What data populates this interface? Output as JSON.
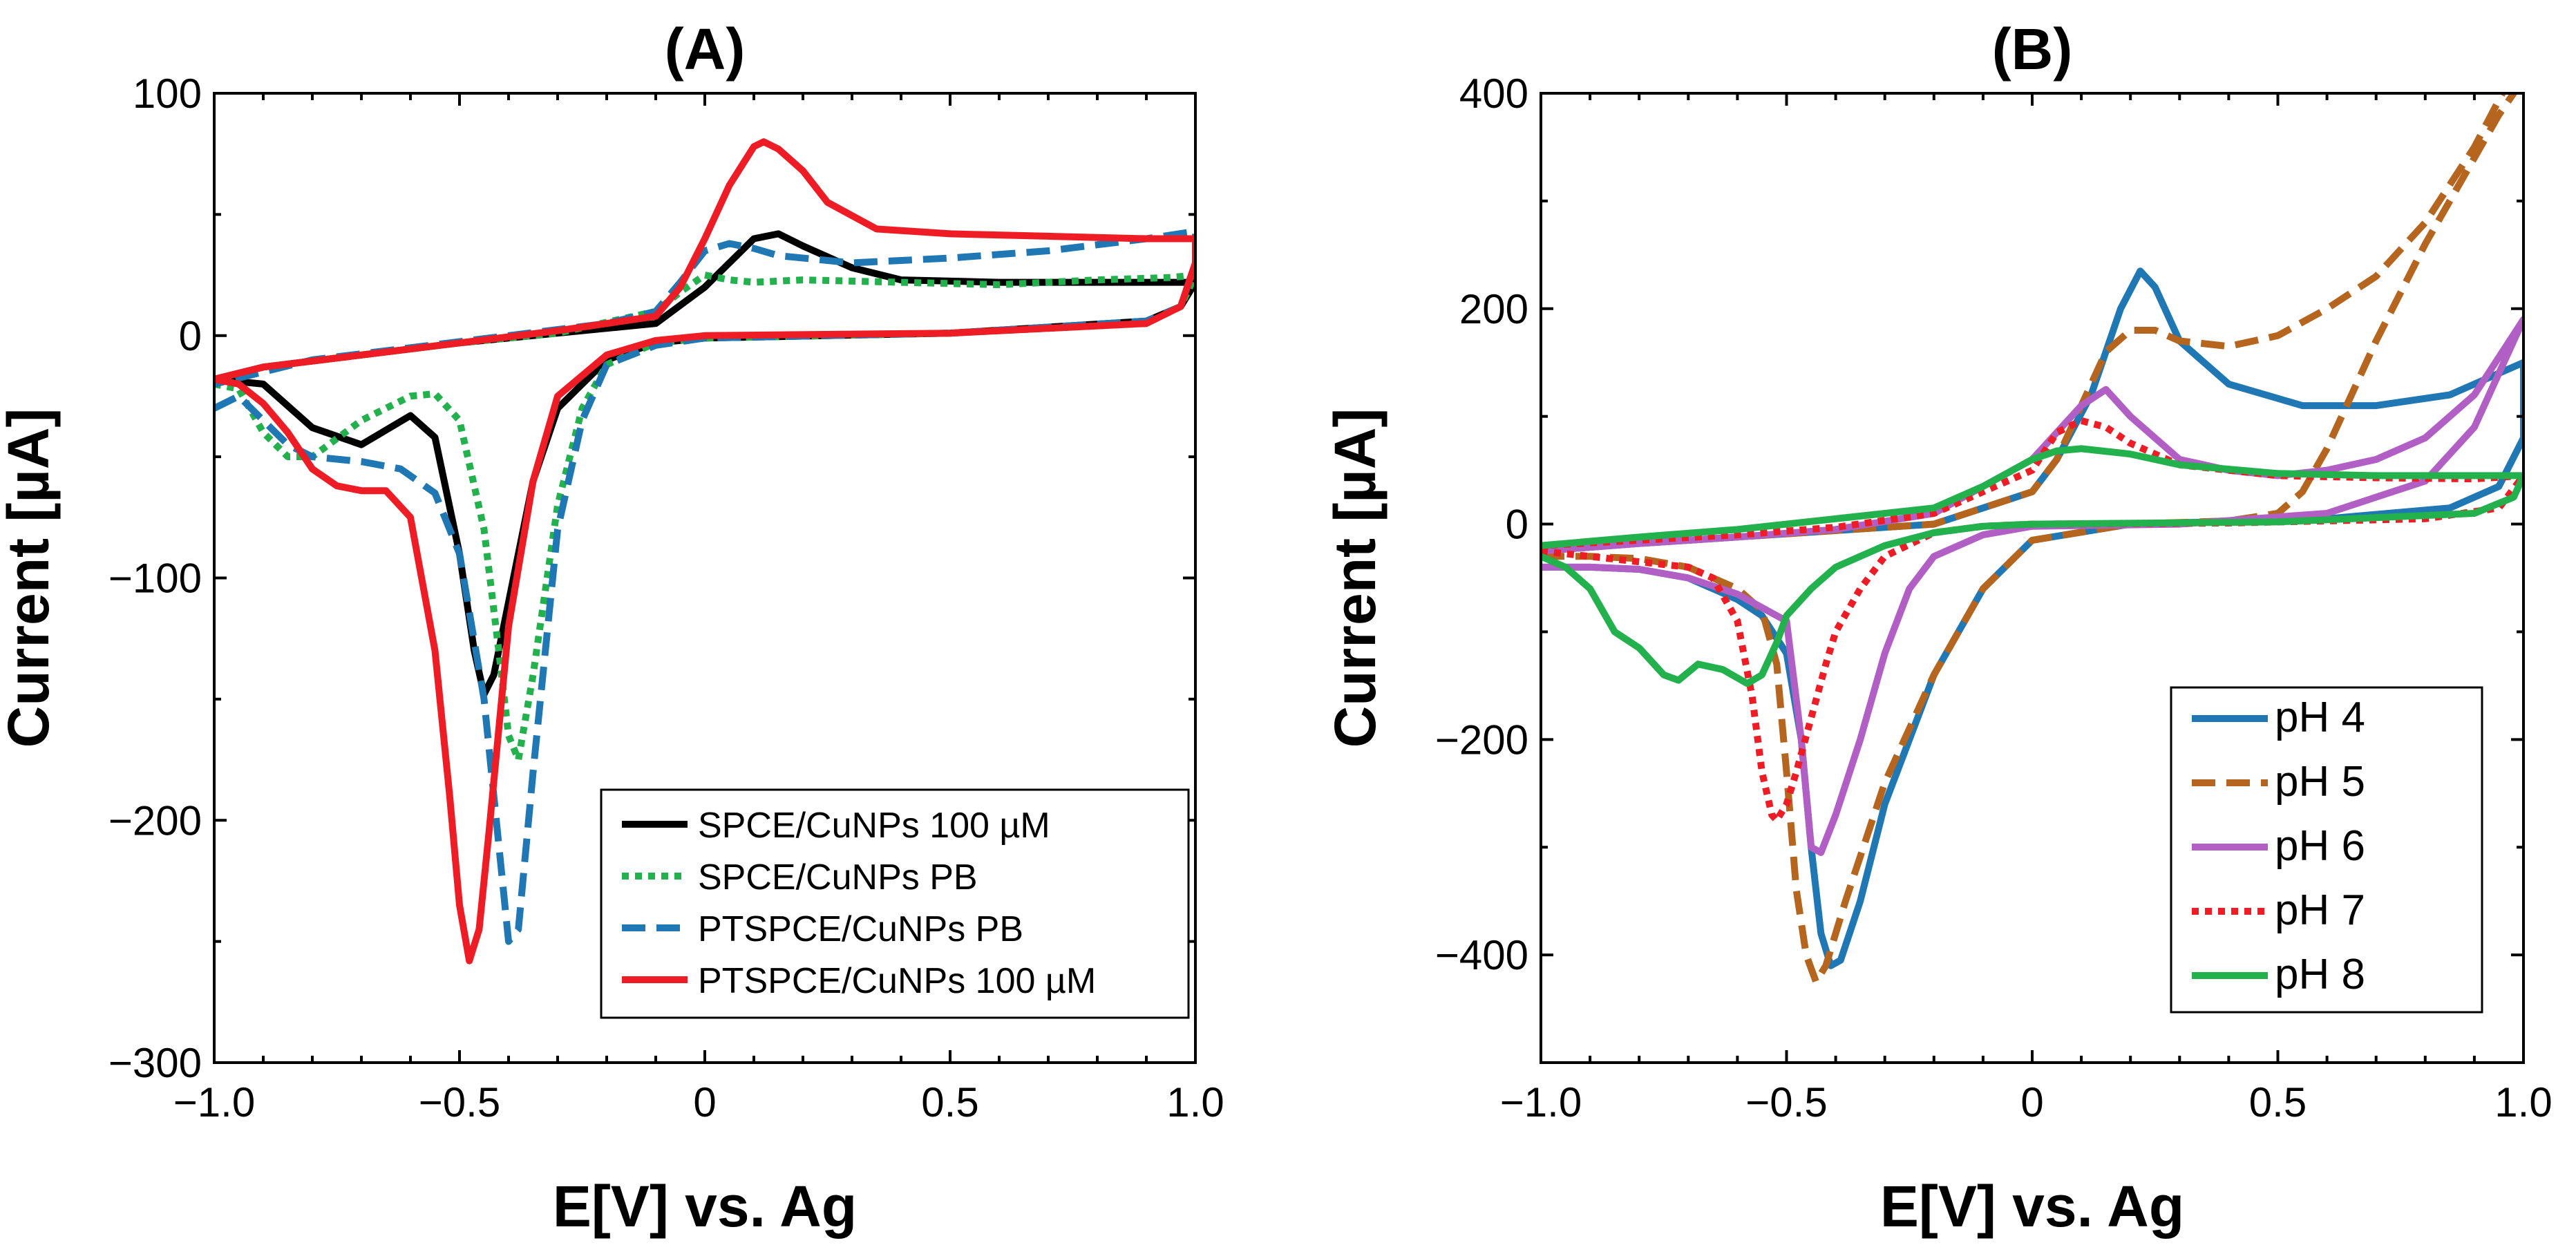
{
  "chart_data": [
    {
      "type": "line",
      "title": "(A)",
      "xlabel": "E[V] vs. Ag",
      "ylabel": "Current [µA]",
      "xlim": [
        -1.0,
        1.0
      ],
      "ylim": [
        -300,
        100
      ],
      "xticks": [
        -1.0,
        -0.5,
        0,
        0.5,
        1.0
      ],
      "xtick_labels": [
        "−1.0",
        "−0.5",
        "0",
        "0.5",
        "1.0"
      ],
      "yticks": [
        100,
        0,
        -100,
        -200,
        -300
      ],
      "ytick_labels": [
        "100",
        "0",
        "−100",
        "−200",
        "−300"
      ],
      "legend_position": "bottom-right",
      "series": [
        {
          "name": "SPCE/CuNPs 100 µM",
          "color": "#000000",
          "dash": "solid",
          "x": [
            -1.0,
            -0.9,
            -0.8,
            -0.7,
            -0.6,
            -0.55,
            -0.5,
            -0.47,
            -0.45,
            -0.43,
            -0.4,
            -0.35,
            -0.3,
            -0.2,
            -0.1,
            0.0,
            0.5,
            0.9,
            0.97,
            1.0,
            1.0,
            0.95,
            0.9,
            0.8,
            0.6,
            0.4,
            0.3,
            0.2,
            0.15,
            0.1,
            0.05,
            0.0,
            -0.1,
            -0.3,
            -0.5,
            -0.7,
            -0.9,
            -1.0
          ],
          "y": [
            -18,
            -20,
            -38,
            -45,
            -33,
            -42,
            -90,
            -130,
            -148,
            -140,
            -110,
            -60,
            -30,
            -10,
            -3,
            -1,
            1,
            6,
            12,
            22,
            22,
            22,
            22,
            22,
            22,
            23,
            28,
            37,
            42,
            40,
            30,
            20,
            5,
            1,
            -3,
            -8,
            -13,
            -18
          ]
        },
        {
          "name": "SPCE/CuNPs PB",
          "color": "#22b14c",
          "dash": "dotted",
          "x": [
            -1.0,
            -0.95,
            -0.9,
            -0.85,
            -0.8,
            -0.7,
            -0.6,
            -0.55,
            -0.5,
            -0.45,
            -0.42,
            -0.4,
            -0.38,
            -0.35,
            -0.3,
            -0.25,
            -0.2,
            -0.1,
            0.0,
            0.5,
            0.9,
            0.97,
            1.0,
            1.0,
            0.95,
            0.8,
            0.6,
            0.4,
            0.2,
            0.1,
            0.05,
            0.0,
            -0.05,
            -0.1,
            -0.3,
            -0.5,
            -0.7,
            -0.9,
            -1.0
          ],
          "y": [
            -20,
            -22,
            -40,
            -50,
            -50,
            -35,
            -25,
            -24,
            -35,
            -80,
            -130,
            -165,
            -175,
            -140,
            -70,
            -30,
            -12,
            -3,
            -1,
            1,
            5,
            12,
            25,
            25,
            24,
            23,
            21,
            22,
            23,
            22,
            23,
            25,
            18,
            10,
            1,
            -3,
            -8,
            -13,
            -20
          ]
        },
        {
          "name": "PTSPCE/CuNPs PB",
          "color": "#1f77b4",
          "dash": "dashed",
          "x": [
            -1.0,
            -0.95,
            -0.9,
            -0.85,
            -0.8,
            -0.7,
            -0.62,
            -0.55,
            -0.5,
            -0.45,
            -0.42,
            -0.4,
            -0.38,
            -0.35,
            -0.3,
            -0.25,
            -0.2,
            -0.1,
            0.0,
            0.5,
            0.9,
            0.97,
            1.0,
            1.0,
            0.9,
            0.7,
            0.5,
            0.3,
            0.15,
            0.1,
            0.05,
            0.0,
            -0.05,
            -0.1,
            -0.2,
            -0.4,
            -0.6,
            -0.8,
            -1.0
          ],
          "y": [
            -30,
            -25,
            -35,
            -45,
            -50,
            -52,
            -55,
            -65,
            -90,
            -150,
            -210,
            -250,
            -245,
            -180,
            -80,
            -35,
            -12,
            -4,
            -1,
            1,
            6,
            12,
            30,
            43,
            40,
            35,
            32,
            30,
            33,
            36,
            38,
            35,
            22,
            10,
            5,
            0,
            -5,
            -10,
            -20
          ]
        },
        {
          "name": "PTSPCE/CuNPs 100 µM",
          "color": "#ee1c24",
          "dash": "solid",
          "x": [
            -1.0,
            -0.95,
            -0.9,
            -0.85,
            -0.8,
            -0.75,
            -0.7,
            -0.65,
            -0.6,
            -0.55,
            -0.52,
            -0.5,
            -0.48,
            -0.46,
            -0.44,
            -0.4,
            -0.35,
            -0.3,
            -0.2,
            -0.1,
            0.0,
            0.5,
            0.9,
            0.97,
            1.0,
            1.0,
            0.9,
            0.7,
            0.5,
            0.35,
            0.25,
            0.2,
            0.15,
            0.12,
            0.1,
            0.05,
            0.0,
            -0.05,
            -0.1,
            -0.3,
            -0.5,
            -0.7,
            -0.9,
            -1.0
          ],
          "y": [
            -18,
            -20,
            -28,
            -40,
            -55,
            -62,
            -64,
            -64,
            -75,
            -130,
            -190,
            -235,
            -258,
            -245,
            -205,
            -120,
            -60,
            -25,
            -8,
            -2,
            0,
            1,
            5,
            12,
            30,
            40,
            40,
            41,
            42,
            44,
            55,
            68,
            77,
            80,
            78,
            62,
            40,
            20,
            8,
            2,
            -3,
            -8,
            -13,
            -18
          ]
        }
      ]
    },
    {
      "type": "line",
      "title": "(B)",
      "xlabel": "E[V] vs. Ag",
      "ylabel": "Current [µA]",
      "xlim": [
        -1.0,
        1.0
      ],
      "ylim": [
        -500,
        400
      ],
      "xticks": [
        -1.0,
        -0.5,
        0,
        0.5,
        1.0
      ],
      "xtick_labels": [
        "−1.0",
        "−0.5",
        "0",
        "0.5",
        "1.0"
      ],
      "yticks": [
        400,
        200,
        0,
        -200,
        -400
      ],
      "ytick_labels": [
        "400",
        "200",
        "0",
        "−200",
        "−400"
      ],
      "legend_position": "bottom-right",
      "series": [
        {
          "name": "pH 4",
          "color": "#1f77b4",
          "dash": "solid",
          "x": [
            -1.0,
            -0.9,
            -0.8,
            -0.7,
            -0.6,
            -0.55,
            -0.5,
            -0.47,
            -0.45,
            -0.43,
            -0.41,
            -0.39,
            -0.35,
            -0.3,
            -0.25,
            -0.2,
            -0.1,
            0.0,
            0.2,
            0.6,
            0.85,
            0.95,
            1.0,
            1.0,
            0.95,
            0.85,
            0.7,
            0.55,
            0.4,
            0.3,
            0.25,
            0.22,
            0.18,
            0.12,
            0.05,
            0.0,
            -0.2,
            -0.4,
            -0.6,
            -0.8,
            -1.0
          ],
          "y": [
            -40,
            -40,
            -42,
            -50,
            -70,
            -85,
            -120,
            -200,
            -300,
            -380,
            -410,
            -405,
            -350,
            -260,
            -200,
            -140,
            -60,
            -15,
            0,
            5,
            15,
            35,
            80,
            150,
            140,
            120,
            110,
            110,
            130,
            170,
            220,
            235,
            200,
            120,
            60,
            30,
            0,
            -6,
            -12,
            -18,
            -25
          ]
        },
        {
          "name": "pH 5",
          "color": "#b5651d",
          "dash": "dashed",
          "x": [
            -1.0,
            -0.9,
            -0.8,
            -0.7,
            -0.6,
            -0.55,
            -0.52,
            -0.5,
            -0.48,
            -0.46,
            -0.44,
            -0.42,
            -0.38,
            -0.3,
            -0.2,
            -0.1,
            0.0,
            0.2,
            0.4,
            0.5,
            0.55,
            0.6,
            0.7,
            0.8,
            0.9,
            0.95,
            0.98,
            0.98,
            0.9,
            0.8,
            0.7,
            0.6,
            0.5,
            0.4,
            0.3,
            0.25,
            0.2,
            0.15,
            0.1,
            0.05,
            0.0,
            -0.2,
            -0.4,
            -0.6,
            -0.8,
            -1.0
          ],
          "y": [
            -30,
            -30,
            -32,
            -40,
            -60,
            -80,
            -130,
            -230,
            -340,
            -400,
            -425,
            -410,
            -350,
            -240,
            -140,
            -60,
            -15,
            0,
            3,
            10,
            30,
            70,
            170,
            260,
            340,
            380,
            400,
            420,
            350,
            280,
            230,
            200,
            175,
            165,
            170,
            180,
            180,
            160,
            110,
            60,
            30,
            0,
            -6,
            -12,
            -18,
            -25
          ]
        },
        {
          "name": "pH 6",
          "color": "#b15fc4",
          "dash": "solid",
          "x": [
            -1.0,
            -0.9,
            -0.8,
            -0.7,
            -0.6,
            -0.5,
            -0.47,
            -0.45,
            -0.43,
            -0.4,
            -0.35,
            -0.3,
            -0.25,
            -0.2,
            -0.1,
            0.0,
            0.3,
            0.6,
            0.8,
            0.9,
            0.95,
            1.0,
            1.0,
            0.9,
            0.8,
            0.7,
            0.6,
            0.5,
            0.4,
            0.3,
            0.2,
            0.15,
            0.1,
            0.0,
            -0.2,
            -0.4,
            -0.6,
            -0.8,
            -1.0
          ],
          "y": [
            -40,
            -40,
            -42,
            -50,
            -65,
            -90,
            -200,
            -300,
            -305,
            -270,
            -200,
            -120,
            -60,
            -30,
            -10,
            -2,
            0,
            10,
            40,
            90,
            140,
            190,
            190,
            120,
            80,
            60,
            50,
            45,
            50,
            60,
            100,
            125,
            110,
            60,
            10,
            -5,
            -12,
            -18,
            -25
          ]
        },
        {
          "name": "pH 7",
          "color": "#ee1c24",
          "dash": "dotted",
          "x": [
            -1.0,
            -0.9,
            -0.8,
            -0.7,
            -0.65,
            -0.6,
            -0.57,
            -0.55,
            -0.53,
            -0.52,
            -0.5,
            -0.48,
            -0.45,
            -0.42,
            -0.4,
            -0.35,
            -0.3,
            -0.2,
            -0.1,
            0.0,
            0.4,
            0.8,
            0.95,
            1.0,
            1.0,
            0.9,
            0.7,
            0.5,
            0.3,
            0.2,
            0.15,
            0.1,
            0.05,
            0.0,
            -0.2,
            -0.4,
            -0.6,
            -0.8,
            -1.0
          ],
          "y": [
            -25,
            -30,
            -35,
            -40,
            -50,
            -90,
            -160,
            -230,
            -270,
            -275,
            -260,
            -230,
            -180,
            -130,
            -100,
            -60,
            -30,
            -8,
            -2,
            0,
            1,
            5,
            15,
            45,
            45,
            42,
            43,
            45,
            55,
            75,
            90,
            96,
            85,
            50,
            10,
            -3,
            -10,
            -15,
            -20
          ]
        },
        {
          "name": "pH 8",
          "color": "#22b14c",
          "dash": "solid",
          "x": [
            -1.0,
            -0.95,
            -0.9,
            -0.85,
            -0.8,
            -0.75,
            -0.72,
            -0.68,
            -0.63,
            -0.58,
            -0.55,
            -0.52,
            -0.5,
            -0.45,
            -0.4,
            -0.3,
            -0.2,
            -0.1,
            0.0,
            0.5,
            0.9,
            0.98,
            1.0,
            1.0,
            0.9,
            0.7,
            0.5,
            0.3,
            0.2,
            0.1,
            0.05,
            0.0,
            -0.1,
            -0.2,
            -0.4,
            -0.6,
            -0.8,
            -1.0
          ],
          "y": [
            -30,
            -40,
            -60,
            -100,
            -115,
            -140,
            -145,
            -130,
            -135,
            -148,
            -140,
            -110,
            -85,
            -60,
            -40,
            -20,
            -8,
            -2,
            0,
            2,
            10,
            25,
            45,
            45,
            45,
            45,
            47,
            55,
            65,
            70,
            68,
            60,
            35,
            15,
            5,
            -5,
            -12,
            -20
          ]
        }
      ]
    }
  ]
}
